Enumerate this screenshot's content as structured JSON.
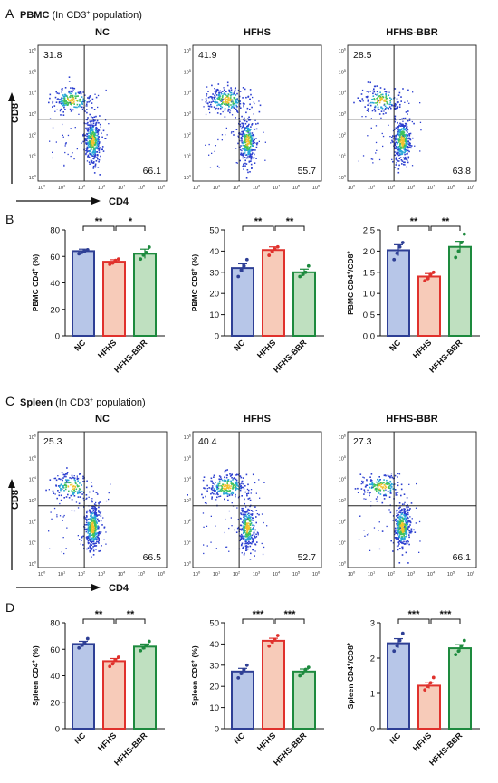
{
  "colors": {
    "nc": "#2e3f95",
    "nc_fill": "#b7c6e8",
    "hfhs": "#e0312c",
    "hfhs_fill": "#f7cbb9",
    "bbr": "#1d8a3e",
    "bbr_fill": "#bfe0c0"
  },
  "sections": [
    {
      "panel_letter": "A",
      "title_bold": "PBMC",
      "title_rest": " (In CD3",
      "title_sup": "+",
      "title_end": " population)",
      "flow": {
        "x_label": "CD4",
        "y_label": "CD8",
        "tick_exps": [
          "0",
          "1",
          "2",
          "3",
          "4",
          "5",
          "6"
        ],
        "plots": [
          {
            "title": "NC",
            "ul": "31.8",
            "lr": "66.1"
          },
          {
            "title": "HFHS",
            "ul": "41.9",
            "lr": "55.7"
          },
          {
            "title": "HFHS-BBR",
            "ul": "28.5",
            "lr": "63.8"
          }
        ]
      }
    },
    {
      "panel_letter": "B",
      "bar_charts": [
        {
          "ylabel_pre": "PBMC CD4",
          "ylabel_sup": "+",
          "ylabel_post": " (%)",
          "categories": [
            "NC",
            "HFHS",
            "HFHS-BBR"
          ],
          "values": [
            64,
            56,
            62
          ],
          "sem": [
            1.5,
            1.5,
            3.5
          ],
          "points": [
            [
              62,
              63,
              64,
              65
            ],
            [
              54,
              55,
              57,
              58
            ],
            [
              58,
              61,
              63,
              67
            ]
          ],
          "ylim": [
            0,
            80
          ],
          "ticks": [
            "0",
            "20",
            "40",
            "60",
            "80"
          ],
          "sig": [
            "**",
            "*"
          ]
        },
        {
          "ylabel_pre": "PBMC CD8",
          "ylabel_sup": "+",
          "ylabel_post": " (%)",
          "categories": [
            "NC",
            "HFHS",
            "HFHS-BBR"
          ],
          "values": [
            32,
            40.5,
            30
          ],
          "sem": [
            2,
            1.5,
            1.5
          ],
          "points": [
            [
              28,
              31,
              33,
              36
            ],
            [
              38,
              40,
              41,
              42
            ],
            [
              28,
              29,
              30,
              33
            ]
          ],
          "ylim": [
            0,
            50
          ],
          "ticks": [
            "0",
            "10",
            "20",
            "30",
            "40",
            "50"
          ],
          "sig": [
            "**",
            "**"
          ]
        },
        {
          "ylabel_pre": "PBMC CD4",
          "ylabel_sup": "+",
          "ylabel_post": "/CD8",
          "ylabel_sup2": "+",
          "categories": [
            "NC",
            "HFHS",
            "HFHS-BBR"
          ],
          "values": [
            2.02,
            1.4,
            2.1
          ],
          "sem": [
            0.13,
            0.07,
            0.13
          ],
          "points": [
            [
              1.8,
              1.95,
              2.1,
              2.2
            ],
            [
              1.3,
              1.35,
              1.45,
              1.5
            ],
            [
              1.85,
              2.0,
              2.2,
              2.4
            ]
          ],
          "ylim": [
            0,
            2.5
          ],
          "ticks": [
            "0.0",
            "0.5",
            "1.0",
            "1.5",
            "2.0",
            "2.5"
          ],
          "sig": [
            "**",
            "**"
          ]
        }
      ]
    },
    {
      "panel_letter": "C",
      "title_bold": "Spleen",
      "title_rest": " (In CD3",
      "title_sup": "+",
      "title_end": " population)",
      "flow": {
        "x_label": "CD4",
        "y_label": "CD8",
        "tick_exps": [
          "0",
          "1",
          "2",
          "3",
          "4",
          "5",
          "6"
        ],
        "plots": [
          {
            "title": "NC",
            "ul": "25.3",
            "lr": "66.5"
          },
          {
            "title": "HFHS",
            "ul": "40.4",
            "lr": "52.7"
          },
          {
            "title": "HFHS-BBR",
            "ul": "27.3",
            "lr": "66.1"
          }
        ]
      }
    },
    {
      "panel_letter": "D",
      "bar_charts": [
        {
          "ylabel_pre": "Spleen CD4",
          "ylabel_sup": "+",
          "ylabel_post": " (%)",
          "categories": [
            "NC",
            "HFHS",
            "HFHS-BBR"
          ],
          "values": [
            64,
            51,
            62
          ],
          "sem": [
            2,
            2,
            2
          ],
          "points": [
            [
              61,
              63,
              65,
              68
            ],
            [
              47,
              49,
              52,
              54
            ],
            [
              59,
              61,
              63,
              66
            ]
          ],
          "ylim": [
            0,
            80
          ],
          "ticks": [
            "0",
            "20",
            "40",
            "60",
            "80"
          ],
          "sig": [
            "**",
            "**"
          ]
        },
        {
          "ylabel_pre": "Spleen CD8",
          "ylabel_sup": "+",
          "ylabel_post": " (%)",
          "categories": [
            "NC",
            "HFHS",
            "HFHS-BBR"
          ],
          "values": [
            27,
            41.5,
            27
          ],
          "sem": [
            1.5,
            1.2,
            1.2
          ],
          "points": [
            [
              24,
              26,
              28,
              30
            ],
            [
              39,
              41,
              42,
              44
            ],
            [
              25,
              26,
              28,
              29
            ]
          ],
          "ylim": [
            0,
            50
          ],
          "ticks": [
            "0",
            "10",
            "20",
            "30",
            "40",
            "50"
          ],
          "sig": [
            "***",
            "***"
          ]
        },
        {
          "ylabel_pre": "Spleen CD4",
          "ylabel_sup": "+",
          "ylabel_post": "/CD8",
          "ylabel_sup2": "+",
          "categories": [
            "NC",
            "HFHS",
            "HFHS-BBR"
          ],
          "values": [
            2.42,
            1.22,
            2.28
          ],
          "sem": [
            0.13,
            0.08,
            0.1
          ],
          "points": [
            [
              2.2,
              2.35,
              2.5,
              2.7
            ],
            [
              1.1,
              1.2,
              1.3,
              1.45
            ],
            [
              2.1,
              2.2,
              2.35,
              2.5
            ]
          ],
          "ylim": [
            0,
            3
          ],
          "ticks": [
            "0",
            "1",
            "2",
            "3"
          ],
          "sig": [
            "***",
            "***"
          ]
        }
      ]
    }
  ],
  "chart_data": [
    {
      "type": "bar",
      "panel": "B",
      "categories": [
        "NC",
        "HFHS",
        "HFHS-BBR"
      ],
      "values": [
        64,
        56,
        62
      ],
      "ylabel": "PBMC CD4+ (%)",
      "ylim": [
        0,
        80
      ]
    },
    {
      "type": "bar",
      "panel": "B",
      "categories": [
        "NC",
        "HFHS",
        "HFHS-BBR"
      ],
      "values": [
        32,
        40.5,
        30
      ],
      "ylabel": "PBMC CD8+ (%)",
      "ylim": [
        0,
        50
      ]
    },
    {
      "type": "bar",
      "panel": "B",
      "categories": [
        "NC",
        "HFHS",
        "HFHS-BBR"
      ],
      "values": [
        2.02,
        1.4,
        2.1
      ],
      "ylabel": "PBMC CD4+/CD8+",
      "ylim": [
        0,
        2.5
      ]
    },
    {
      "type": "bar",
      "panel": "D",
      "categories": [
        "NC",
        "HFHS",
        "HFHS-BBR"
      ],
      "values": [
        64,
        51,
        62
      ],
      "ylabel": "Spleen CD4+ (%)",
      "ylim": [
        0,
        80
      ]
    },
    {
      "type": "bar",
      "panel": "D",
      "categories": [
        "NC",
        "HFHS",
        "HFHS-BBR"
      ],
      "values": [
        27,
        41.5,
        27
      ],
      "ylabel": "Spleen CD8+ (%)",
      "ylim": [
        0,
        50
      ]
    },
    {
      "type": "bar",
      "panel": "D",
      "categories": [
        "NC",
        "HFHS",
        "HFHS-BBR"
      ],
      "values": [
        2.42,
        1.22,
        2.28
      ],
      "ylabel": "Spleen CD4+/CD8+",
      "ylim": [
        0,
        3
      ]
    },
    {
      "type": "scatter",
      "panel": "A",
      "x_axis": "CD4",
      "y_axis": "CD8",
      "log_scale": true,
      "quadrant_percent": [
        {
          "group": "NC",
          "CD8+": 31.8,
          "CD4+": 66.1
        },
        {
          "group": "HFHS",
          "CD8+": 41.9,
          "CD4+": 55.7
        },
        {
          "group": "HFHS-BBR",
          "CD8+": 28.5,
          "CD4+": 63.8
        }
      ]
    },
    {
      "type": "scatter",
      "panel": "C",
      "x_axis": "CD4",
      "y_axis": "CD8",
      "log_scale": true,
      "quadrant_percent": [
        {
          "group": "NC",
          "CD8+": 25.3,
          "CD4+": 66.5
        },
        {
          "group": "HFHS",
          "CD8+": 40.4,
          "CD4+": 52.7
        },
        {
          "group": "HFHS-BBR",
          "CD8+": 27.3,
          "CD4+": 66.1
        }
      ]
    }
  ]
}
